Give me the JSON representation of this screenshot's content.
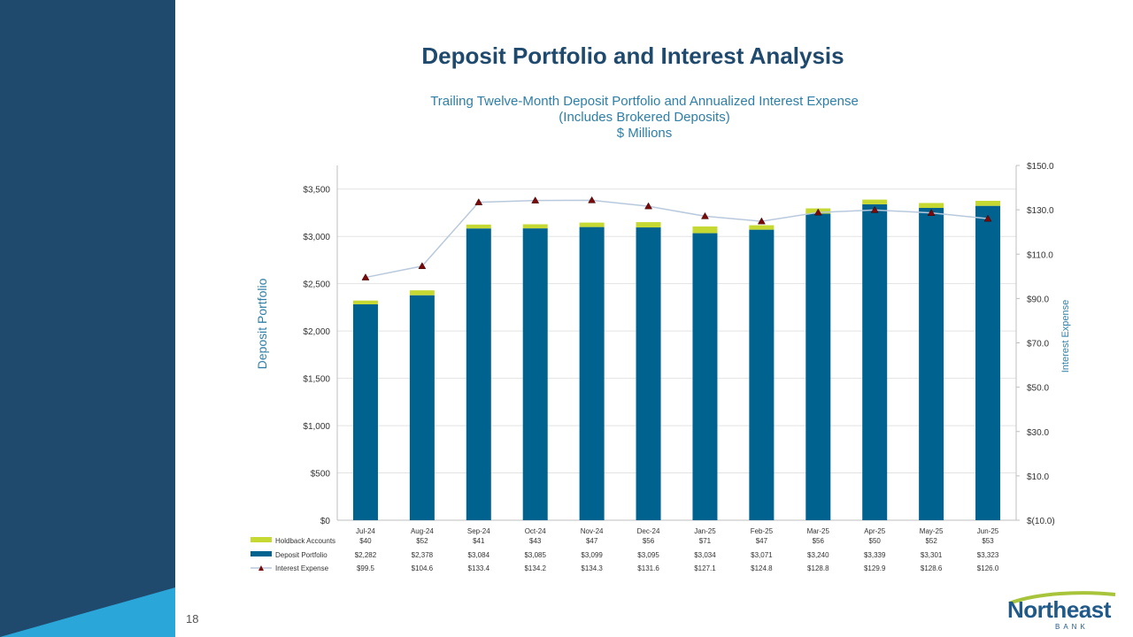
{
  "slide": {
    "title": "Deposit Portfolio and Interest Analysis",
    "subtitle_lines": [
      "Trailing Twelve-Month Deposit Portfolio and Annualized Interest Expense",
      "(Includes Brokered Deposits)",
      "$ Millions"
    ],
    "page_number": "18",
    "logo": {
      "name": "Northeast",
      "sub": "BANK"
    }
  },
  "colors": {
    "sidebar": "#1f4a6e",
    "accent": "#2aa6d9",
    "deposit": "#00628f",
    "holdback": "#c5d932",
    "line": "#b9c9dd",
    "marker": "#7a0a0a",
    "title": "#1f4a6e",
    "subtitle": "#2e7fa8"
  },
  "chart_data": {
    "type": "bar",
    "stacked": true,
    "categories": [
      "Jul-24",
      "Aug-24",
      "Sep-24",
      "Oct-24",
      "Nov-24",
      "Dec-24",
      "Jan-25",
      "Feb-25",
      "Mar-25",
      "Apr-25",
      "May-25",
      "Jun-25"
    ],
    "series": [
      {
        "name": "Holdback Accounts",
        "labels": [
          "$40",
          "$52",
          "$41",
          "$43",
          "$47",
          "$56",
          "$71",
          "$47",
          "$56",
          "$50",
          "$52",
          "$53"
        ],
        "values": [
          40,
          52,
          41,
          43,
          47,
          56,
          71,
          47,
          56,
          50,
          52,
          53
        ]
      },
      {
        "name": "Deposit Portfolio",
        "labels": [
          "$2,282",
          "$2,378",
          "$3,084",
          "$3,085",
          "$3,099",
          "$3,095",
          "$3,034",
          "$3,071",
          "$3,240",
          "$3,339",
          "$3,301",
          "$3,323"
        ],
        "values": [
          2282,
          2378,
          3084,
          3085,
          3099,
          3095,
          3034,
          3071,
          3240,
          3339,
          3301,
          3323
        ]
      },
      {
        "name": "Interest Expense",
        "type": "line",
        "axis": "right",
        "labels": [
          "$99.5",
          "$104.6",
          "$133.4",
          "$134.2",
          "$134.3",
          "$131.6",
          "$127.1",
          "$124.8",
          "$128.8",
          "$129.9",
          "$128.6",
          "$126.0"
        ],
        "values": [
          99.5,
          104.6,
          133.4,
          134.2,
          134.3,
          131.6,
          127.1,
          124.8,
          128.8,
          129.9,
          128.6,
          126.0
        ]
      }
    ],
    "ylabel": "Deposit Portfolio",
    "y2label": "Interest Expense",
    "ylim": [
      0,
      3750
    ],
    "y_ticks": [
      0,
      500,
      1000,
      1500,
      2000,
      2500,
      3000,
      3500
    ],
    "y_tick_labels": [
      "$0",
      "$500",
      "$1,000",
      "$1,500",
      "$2,000",
      "$2,500",
      "$3,000",
      "$3,500"
    ],
    "y2lim": [
      -10,
      150
    ],
    "y2_ticks": [
      -10,
      10,
      30,
      50,
      70,
      90,
      110,
      130,
      150
    ],
    "y2_tick_labels": [
      "$(10.0)",
      "$10.0",
      "$30.0",
      "$50.0",
      "$70.0",
      "$90.0",
      "$110.0",
      "$130.0",
      "$150.0"
    ],
    "grid": true,
    "legend": "bottom data table"
  }
}
